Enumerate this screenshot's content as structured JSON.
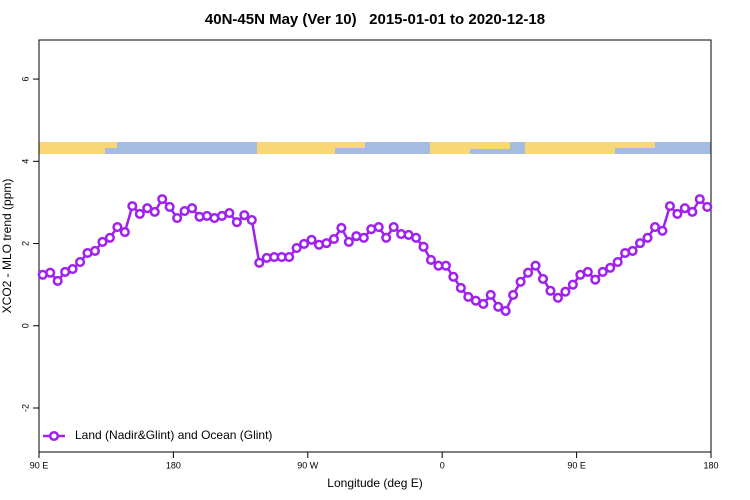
{
  "chart_data": {
    "type": "line",
    "title": "40N-45N May (Ver 10)   2015-01-01 to 2020-12-18",
    "x_label": "Longitude (deg E)",
    "y_label": "XCO2 - MLO trend (ppm)",
    "xlim": [
      90,
      540
    ],
    "ylim": [
      -3.07,
      6.95
    ],
    "xticks": [
      {
        "value": 90,
        "label": "90 E"
      },
      180,
      {
        "value": 270,
        "label": "90 W"
      },
      {
        "value": 360,
        "label": "0"
      },
      {
        "value": 450,
        "label": "90 E"
      },
      {
        "value": 540,
        "label": "180"
      }
    ],
    "yticks": [
      -2,
      0,
      2,
      4,
      6
    ],
    "legend": "bottomleft",
    "x": [
      92.5,
      97.5,
      102.5,
      107.5,
      112.5,
      117.5,
      122.5,
      127.5,
      132.5,
      137.5,
      142.5,
      147.5,
      152.5,
      157.5,
      162.5,
      167.5,
      172.5,
      177.5,
      182.5,
      187.5,
      192.5,
      197.5,
      202.5,
      207.5,
      212.5,
      217.5,
      222.5,
      227.5,
      232.5,
      237.5,
      242.5,
      247.5,
      252.5,
      257.5,
      262.5,
      267.5,
      272.5,
      277.5,
      282.5,
      287.5,
      292.5,
      297.5,
      302.5,
      307.5,
      312.5,
      317.5,
      322.5,
      327.5,
      332.5,
      337.5,
      342.5,
      347.5,
      352.5,
      357.5,
      362.5,
      367.5,
      372.5,
      377.5,
      382.5,
      387.5,
      392.5,
      397.5,
      402.5,
      407.5,
      412.5,
      417.5,
      422.5,
      427.5,
      432.5,
      437.5,
      442.5,
      447.5,
      452.5,
      457.5,
      462.5,
      467.5,
      472.5,
      477.5,
      482.5,
      487.5,
      492.5,
      497.5,
      502.5,
      507.5,
      512.5,
      517.5,
      522.5,
      527.5,
      532.5,
      537.5
    ],
    "series": [
      {
        "name": "Land (Nadir&Glint) and Ocean (Glint)",
        "color": "#a020f0",
        "values": [
          1.24,
          1.29,
          1.09,
          1.31,
          1.38,
          1.55,
          1.77,
          1.82,
          2.04,
          2.14,
          2.4,
          2.28,
          2.91,
          2.72,
          2.86,
          2.77,
          3.08,
          2.89,
          2.62,
          2.79,
          2.86,
          2.65,
          2.67,
          2.62,
          2.67,
          2.74,
          2.52,
          2.69,
          2.57,
          1.53,
          1.65,
          1.67,
          1.67,
          1.67,
          1.89,
          1.99,
          2.09,
          1.97,
          2.01,
          2.11,
          2.38,
          2.04,
          2.18,
          2.14,
          2.35,
          2.4,
          2.14,
          2.4,
          2.23,
          2.21,
          2.14,
          1.92,
          1.6,
          1.46,
          1.46,
          1.19,
          0.92,
          0.7,
          0.61,
          0.53,
          0.75,
          0.46,
          0.36,
          0.75,
          1.07,
          1.29,
          1.46,
          1.14,
          0.85,
          0.68,
          0.83,
          1.0,
          1.24,
          1.31,
          1.12,
          1.31,
          1.41,
          1.55,
          1.77,
          1.82,
          2.01,
          2.14,
          2.4,
          2.31,
          2.91,
          2.72,
          2.86,
          2.77,
          3.08,
          2.89
        ]
      }
    ]
  }
}
